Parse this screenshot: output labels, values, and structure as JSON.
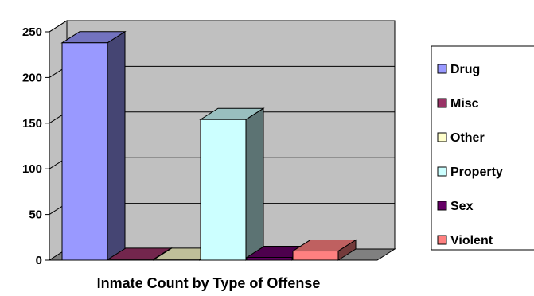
{
  "chart_data": {
    "type": "bar",
    "xlabel": "Inmate Count by Type of Offense",
    "ylabel": "",
    "ylim": [
      0,
      250
    ],
    "yticks": [
      0,
      50,
      100,
      150,
      200,
      250
    ],
    "grid": true,
    "legend_position": "right",
    "series": [
      {
        "name": "Drug",
        "value": 238,
        "color": "#9999ff"
      },
      {
        "name": "Misc",
        "value": 1,
        "color": "#993366"
      },
      {
        "name": "Other",
        "value": 1,
        "color": "#ffffcc"
      },
      {
        "name": "Property",
        "value": 154,
        "color": "#ccffff"
      },
      {
        "name": "Sex",
        "value": 3,
        "color": "#660066"
      },
      {
        "name": "Violent",
        "value": 10,
        "color": "#ff8080"
      }
    ],
    "background_color": "#c0c0c0"
  }
}
